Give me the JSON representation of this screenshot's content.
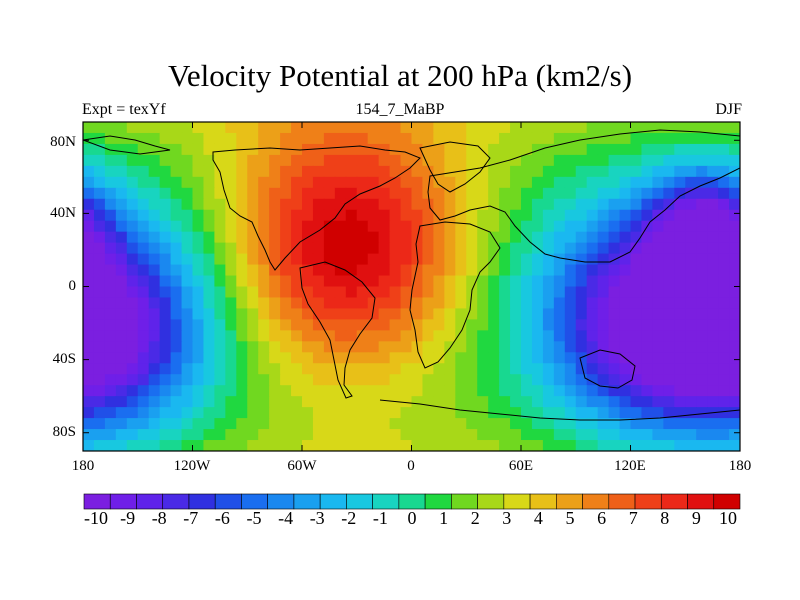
{
  "title": "Velocity Potential at 200 hPa (km2/s)",
  "subtitle_left": "Expt = texYf",
  "subtitle_center": "154_7_MaBP",
  "subtitle_right": "DJF",
  "map": {
    "projection": "cylindrical-equidistant",
    "lon_range": [
      -180,
      180
    ],
    "lat_range": [
      -90,
      90
    ],
    "lon_ticks": [
      "180",
      "120W",
      "60W",
      "0",
      "60E",
      "120E",
      "180"
    ],
    "lat_ticks": [
      "80N",
      "40N",
      "0",
      "40S",
      "80S"
    ],
    "field": {
      "centers": [
        {
          "type": "max",
          "lon": -35,
          "lat": 20,
          "value": 10
        },
        {
          "type": "min",
          "lon": 130,
          "lat": -20,
          "value": -10
        },
        {
          "type": "min",
          "lon": -170,
          "lat": -25,
          "value": -10
        },
        {
          "type": "min",
          "lon": 160,
          "lat": 35,
          "value": -7
        }
      ]
    }
  },
  "colorbar": {
    "labels": [
      "-10",
      "-9",
      "-8",
      "-7",
      "-6",
      "-5",
      "-4",
      "-3",
      "-2",
      "-1",
      "0",
      "1",
      "2",
      "3",
      "4",
      "5",
      "6",
      "7",
      "8",
      "9",
      "10"
    ],
    "colors": [
      "#7b1fe0",
      "#6f1fe8",
      "#5f23ea",
      "#4a2ae6",
      "#3030e0",
      "#2050e8",
      "#1a6ef0",
      "#1a88f0",
      "#1aa0f0",
      "#1ab8f0",
      "#18c8e0",
      "#18d4c0",
      "#18d890",
      "#20d840",
      "#70d820",
      "#a8d818",
      "#d8d818",
      "#e8c018",
      "#eca018",
      "#ef8018",
      "#ef6018",
      "#ef4018",
      "#ec2818",
      "#e01010",
      "#d00000"
    ]
  }
}
